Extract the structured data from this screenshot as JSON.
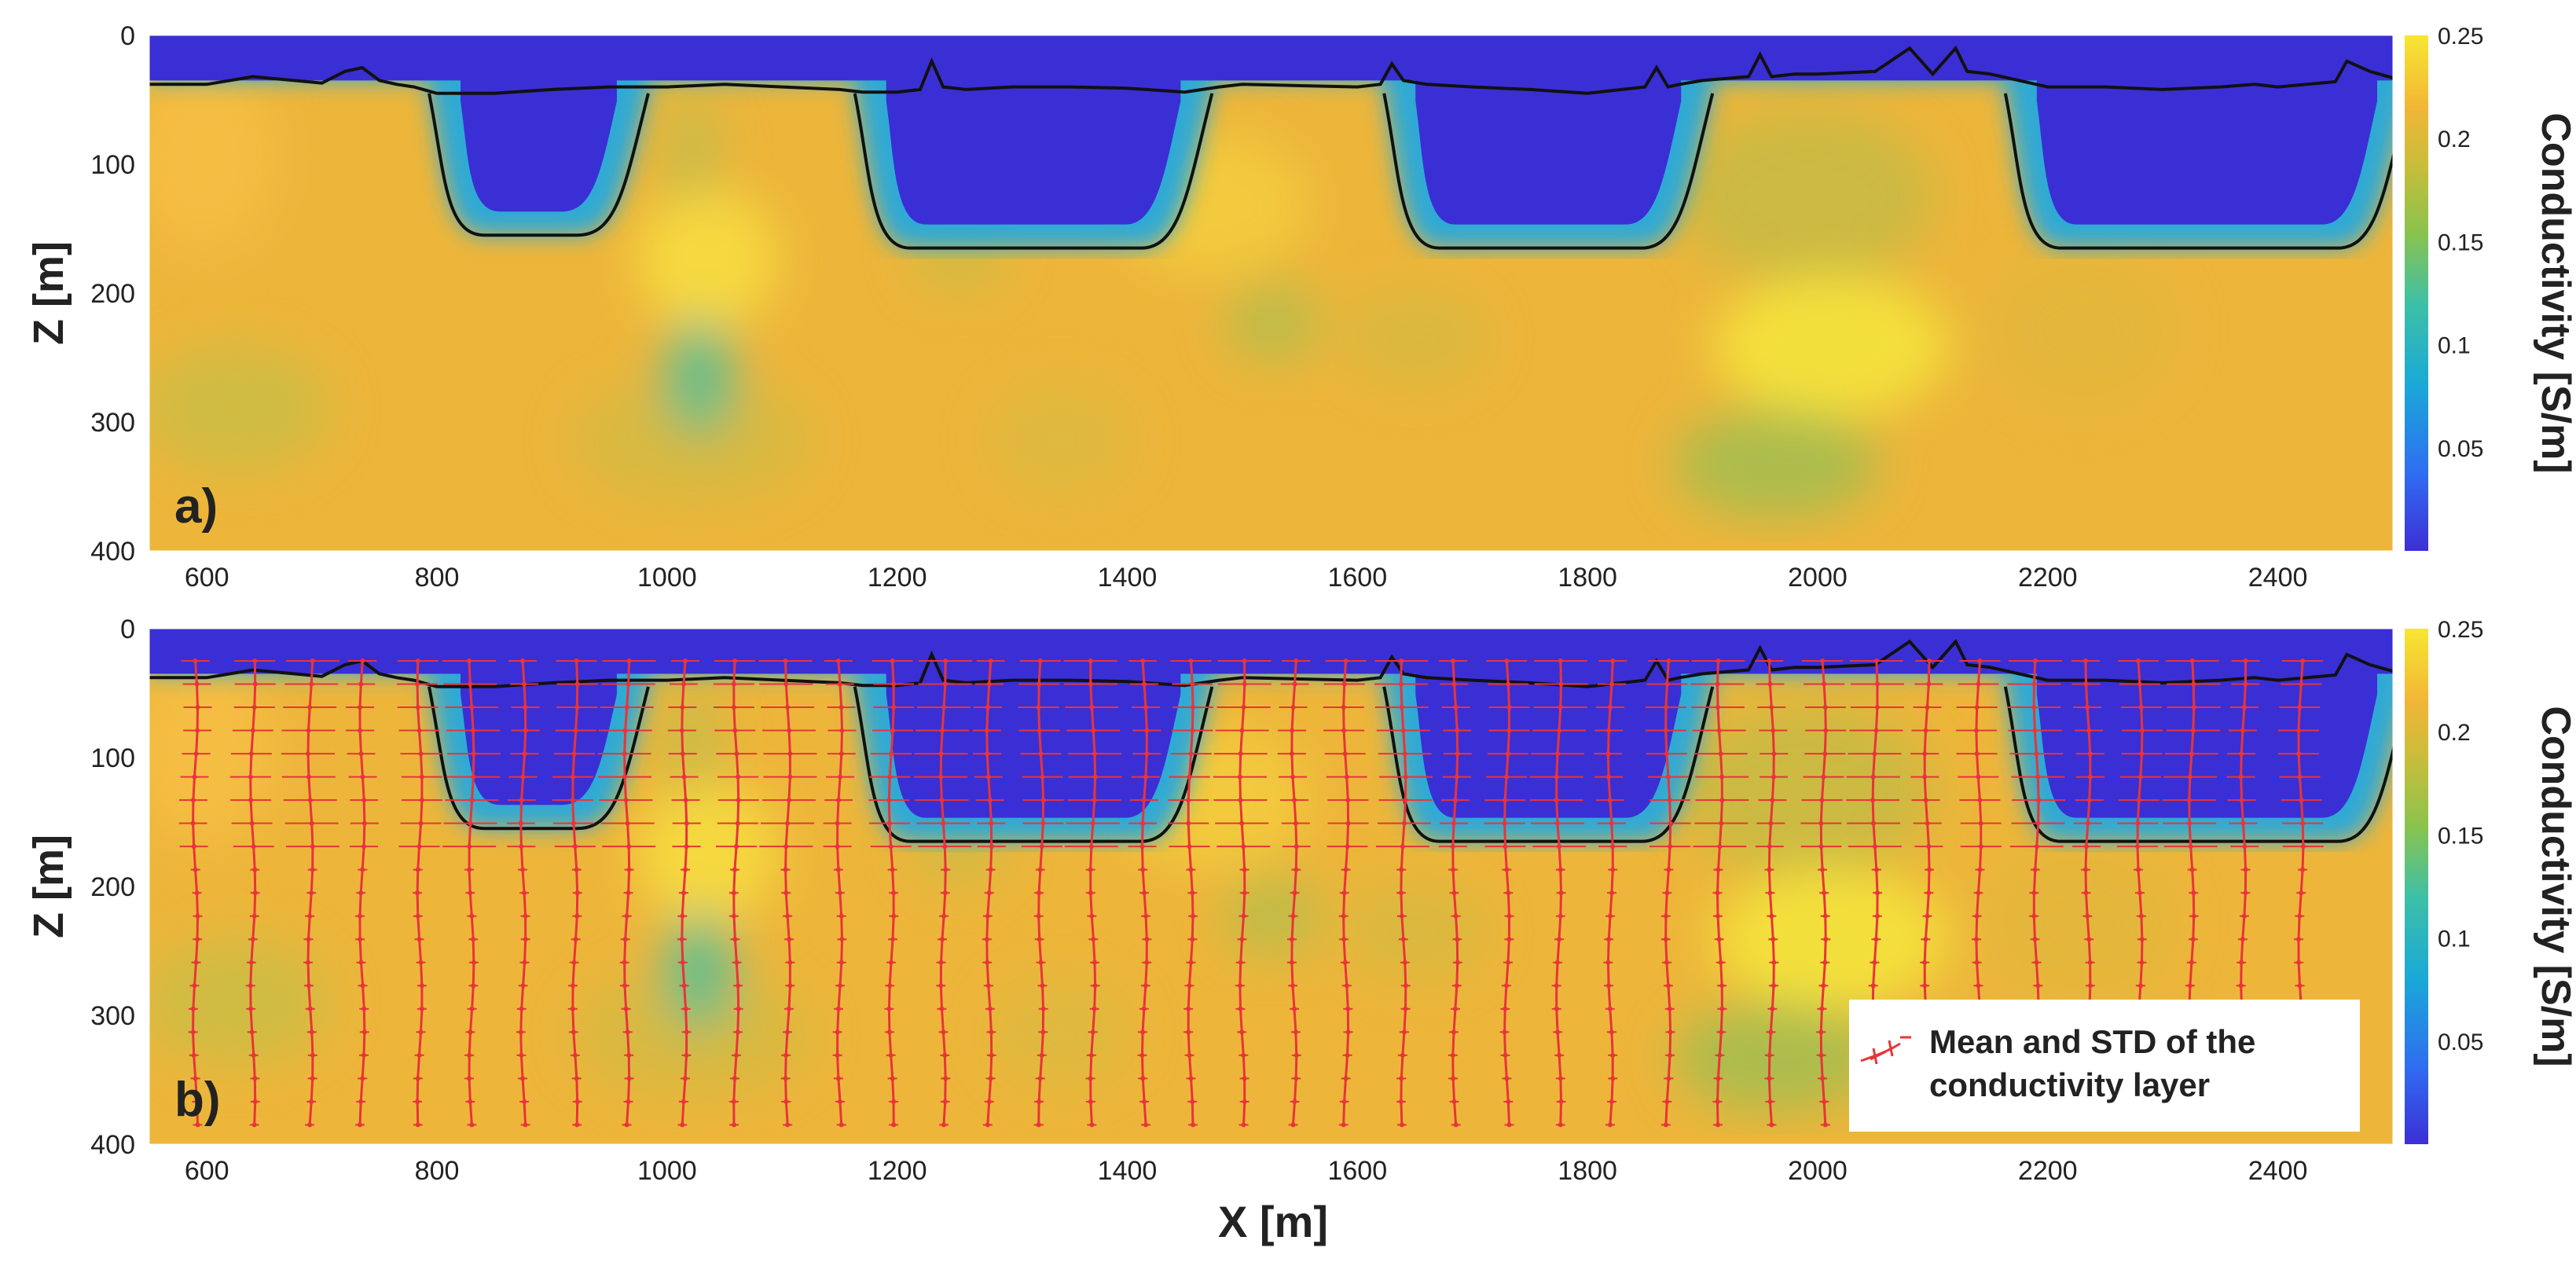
{
  "chart_data": [
    {
      "type": "heatmap",
      "panel_label": "a)",
      "xlabel": "",
      "ylabel": "Z [m]",
      "xlim": [
        550,
        2500
      ],
      "ylim": [
        400,
        0
      ],
      "x_ticks": [
        "600",
        "800",
        "1000",
        "1200",
        "1400",
        "1600",
        "1800",
        "2000",
        "2200",
        "2400"
      ],
      "y_ticks": [
        "0",
        "100",
        "200",
        "300",
        "400"
      ],
      "colorbar": {
        "label": "Conductivity [S/m]",
        "range": [
          0,
          0.25
        ],
        "ticks": [
          "0.05",
          "0.1",
          "0.15",
          "0.2",
          "0.25"
        ],
        "colors": [
          "#3d2fd6",
          "#2f6df0",
          "#1aa8d8",
          "#3ec0a6",
          "#8cc34c",
          "#c9bd3b",
          "#f2b636",
          "#f7e633"
        ]
      },
      "surface_line_x": [
        550,
        600,
        640,
        700,
        720,
        735,
        750,
        765,
        780,
        800,
        850,
        900,
        950,
        1000,
        1050,
        1100,
        1150,
        1170,
        1200,
        1220,
        1230,
        1240,
        1260,
        1300,
        1350,
        1400,
        1450,
        1480,
        1500,
        1550,
        1600,
        1620,
        1630,
        1640,
        1660,
        1700,
        1750,
        1800,
        1850,
        1860,
        1870,
        1880,
        1900,
        1940,
        1950,
        1960,
        1980,
        2000,
        2050,
        2080,
        2100,
        2120,
        2130,
        2150,
        2200,
        2250,
        2300,
        2350,
        2380,
        2400,
        2450,
        2460,
        2480,
        2500
      ],
      "surface_line_z": [
        38,
        38,
        32,
        37,
        28,
        25,
        35,
        38,
        40,
        45,
        45,
        42,
        40,
        40,
        38,
        40,
        42,
        44,
        44,
        42,
        20,
        40,
        42,
        40,
        40,
        41,
        44,
        40,
        38,
        39,
        40,
        38,
        22,
        35,
        38,
        40,
        42,
        45,
        40,
        25,
        40,
        38,
        35,
        32,
        15,
        32,
        30,
        30,
        28,
        10,
        30,
        10,
        28,
        30,
        40,
        40,
        42,
        40,
        38,
        40,
        36,
        20,
        28,
        33
      ],
      "basins": [
        {
          "x_start": 800,
          "x_end": 970,
          "bottom_m": 155
        },
        {
          "x_start": 1170,
          "x_end": 1460,
          "bottom_m": 165
        },
        {
          "x_start": 1630,
          "x_end": 1895,
          "bottom_m": 165
        },
        {
          "x_start": 2170,
          "x_end": 2500,
          "bottom_m": 165
        }
      ]
    },
    {
      "type": "heatmap",
      "panel_label": "b)",
      "xlabel": "X [m]",
      "ylabel": "Z [m]",
      "xlim": [
        550,
        2500
      ],
      "ylim": [
        400,
        0
      ],
      "x_ticks": [
        "600",
        "800",
        "1000",
        "1200",
        "1400",
        "1600",
        "1800",
        "2000",
        "2200",
        "2400"
      ],
      "y_ticks": [
        "0",
        "100",
        "200",
        "300",
        "400"
      ],
      "colorbar": {
        "label": "Conductivity [S/m]",
        "range": [
          0,
          0.25
        ],
        "ticks": [
          "0.05",
          "0.1",
          "0.15",
          "0.2",
          "0.25"
        ]
      },
      "legend": {
        "placement": "bottom-right",
        "entries": [
          "Mean and STD of the",
          "conductivity layer"
        ],
        "color": "#e8343a"
      },
      "profiles_x": [
        590,
        640,
        690,
        735,
        785,
        830,
        875,
        920,
        965,
        1015,
        1060,
        1105,
        1150,
        1195,
        1240,
        1280,
        1325,
        1370,
        1415,
        1455,
        1500,
        1545,
        1590,
        1640,
        1685,
        1730,
        1775,
        1820,
        1870,
        1915,
        1960,
        2005,
        2050,
        2095,
        2140,
        2190,
        2235,
        2280,
        2325,
        2370,
        2420
      ]
    }
  ]
}
